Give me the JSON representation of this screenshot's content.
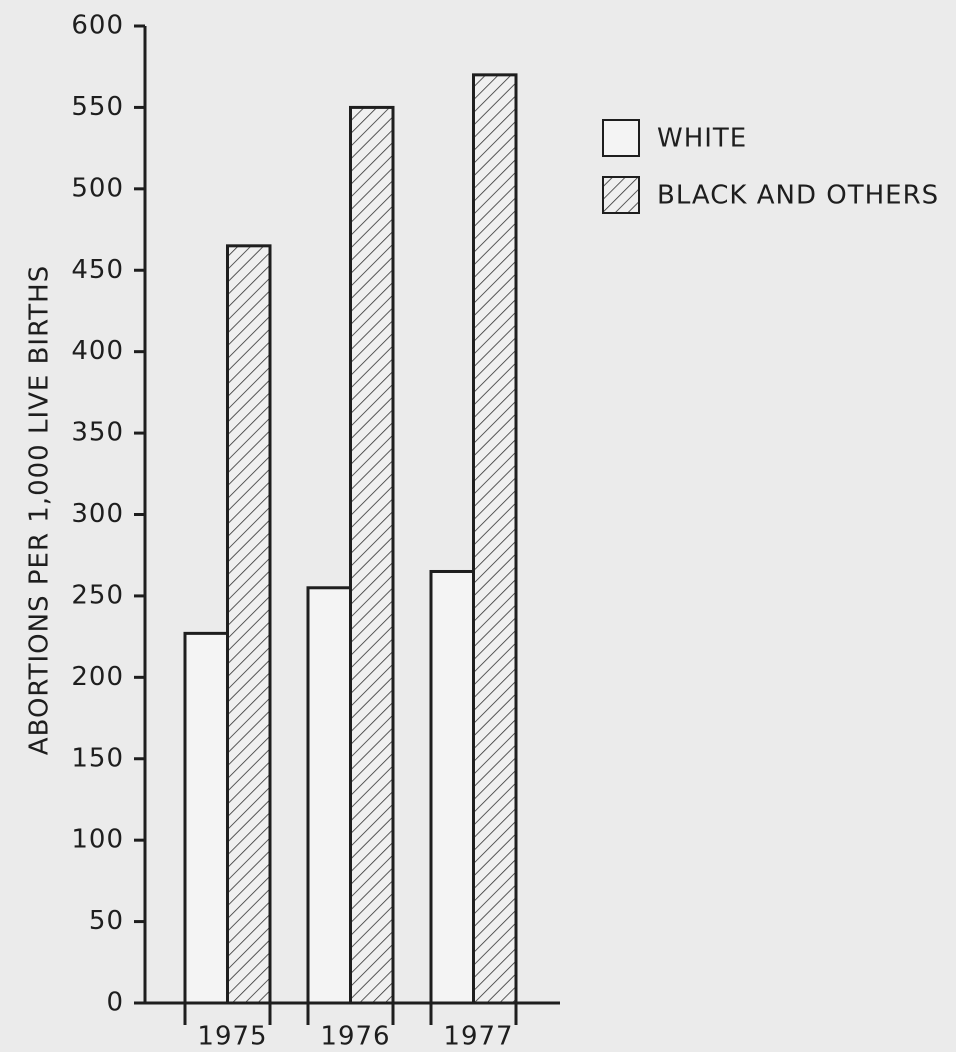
{
  "chart_data": {
    "type": "bar",
    "y_label": "ABORTIONS PER 1,000 LIVE BIRTHS",
    "categories": [
      "1975",
      "1976",
      "1977"
    ],
    "series": [
      {
        "name": "WHITE",
        "color": "#f4f4f4",
        "hatch": false,
        "values": [
          227,
          255,
          265
        ]
      },
      {
        "name": "BLACK AND OTHERS",
        "color": "#f4f4f4",
        "hatch": true,
        "values": [
          465,
          550,
          570
        ]
      }
    ],
    "ylim": [
      0,
      600
    ],
    "yticks": [
      0,
      50,
      100,
      150,
      200,
      250,
      300,
      350,
      400,
      450,
      500,
      550,
      600
    ],
    "grid": false,
    "legend": "upper right"
  }
}
